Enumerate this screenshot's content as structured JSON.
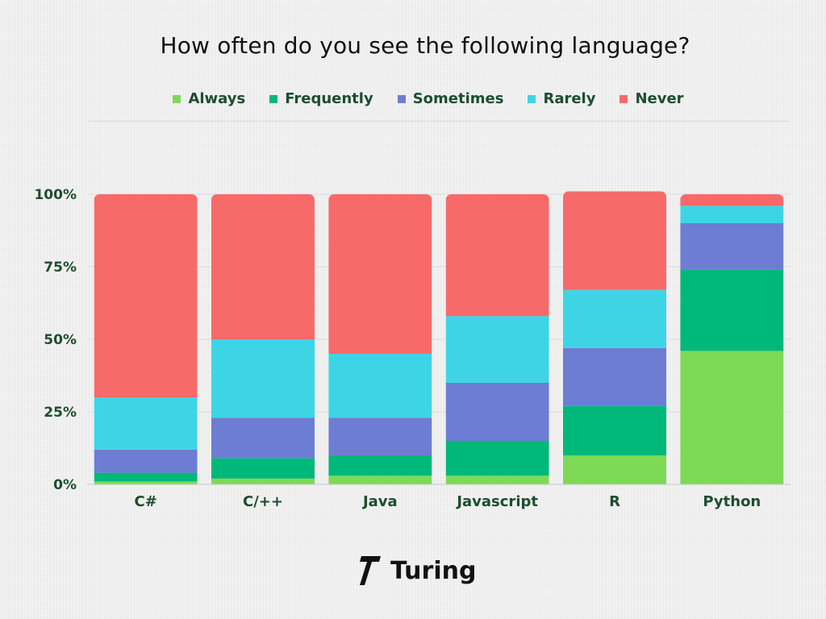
{
  "chart_data": {
    "type": "bar",
    "stacked": true,
    "title": "How often do you see the following language?",
    "categories": [
      "C#",
      "C/++",
      "Java",
      "Javascript",
      "R",
      "Python"
    ],
    "series": [
      {
        "name": "Always",
        "color": "#7ed957",
        "values": [
          1,
          2,
          3,
          3,
          10,
          46
        ]
      },
      {
        "name": "Frequently",
        "color": "#00b87a",
        "values": [
          3,
          7,
          7,
          12,
          17,
          28
        ]
      },
      {
        "name": "Sometimes",
        "color": "#6d7dd3",
        "values": [
          8,
          14,
          13,
          20,
          20,
          16
        ]
      },
      {
        "name": "Rarely",
        "color": "#3dd5e6",
        "values": [
          18,
          27,
          22,
          23,
          20,
          6
        ]
      },
      {
        "name": "Never",
        "color": "#f76a6a",
        "values": [
          70,
          50,
          55,
          42,
          34,
          4
        ]
      }
    ],
    "ylim": [
      0,
      100
    ],
    "yticks": [
      "0%",
      "25%",
      "50%",
      "75%",
      "100%"
    ],
    "ytick_values": [
      0,
      25,
      50,
      75,
      100
    ],
    "grid": true,
    "legend_position": "top"
  },
  "brand": {
    "name": "Turing",
    "logo_icon": "turing-logo-icon"
  }
}
